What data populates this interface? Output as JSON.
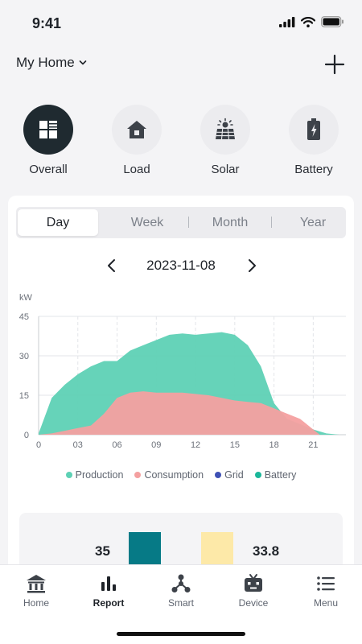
{
  "status": {
    "time": "9:41"
  },
  "header": {
    "home_name": "My Home"
  },
  "categories": [
    {
      "label": "Overall",
      "icon": "grid-icon",
      "active": true
    },
    {
      "label": "Load",
      "icon": "house-icon",
      "active": false
    },
    {
      "label": "Solar",
      "icon": "solar-panel-icon",
      "active": false
    },
    {
      "label": "Battery",
      "icon": "battery-icon",
      "active": false
    }
  ],
  "period_tabs": [
    {
      "label": "Day",
      "active": true
    },
    {
      "label": "Week",
      "active": false
    },
    {
      "label": "Month",
      "active": false
    },
    {
      "label": "Year",
      "active": false
    }
  ],
  "date": "2023-11-08",
  "chart_data": {
    "type": "area",
    "ylabel": "kW",
    "ylim": [
      0,
      45
    ],
    "yticks": [
      0,
      15,
      30,
      45
    ],
    "xlim": [
      0,
      23.5
    ],
    "xticks": [
      "0",
      "03",
      "06",
      "09",
      "12",
      "15",
      "18",
      "21"
    ],
    "grid": true,
    "legend_position": "bottom",
    "series": [
      {
        "name": "Production",
        "color": "#5ed1b5",
        "x": [
          0,
          1,
          2,
          3,
          4,
          5,
          6,
          7,
          8,
          9,
          10,
          11,
          12,
          13,
          14,
          15,
          16,
          17,
          18,
          19,
          20,
          21,
          22,
          23
        ],
        "values": [
          0.5,
          14,
          19,
          23,
          26,
          28,
          28,
          32,
          34,
          36,
          38,
          38.5,
          38,
          38.5,
          39,
          38,
          34,
          26,
          12,
          6,
          4,
          2,
          0.5,
          0
        ]
      },
      {
        "name": "Consumption",
        "color": "#f4a0a0",
        "x": [
          0,
          1,
          2,
          3,
          4,
          5,
          6,
          7,
          8,
          9,
          10,
          11,
          12,
          13,
          14,
          15,
          16,
          17,
          18,
          19,
          20,
          21,
          21.5
        ],
        "values": [
          0,
          0.5,
          1.5,
          2.5,
          3.5,
          8,
          14,
          16,
          16.5,
          16,
          16,
          16,
          15.5,
          15,
          14,
          13,
          12.5,
          12,
          10,
          8,
          6,
          2,
          0
        ]
      },
      {
        "name": "Grid",
        "color": "#3f51b5",
        "x": [],
        "values": []
      },
      {
        "name": "Battery",
        "color": "#1bb79a",
        "x": [],
        "values": []
      }
    ]
  },
  "summary": {
    "left_value": "35",
    "right_value": "33.8",
    "left_color": "#067a86",
    "right_color": "#fde9a8"
  },
  "tabbar": [
    {
      "label": "Home",
      "icon": "home-icon",
      "active": false
    },
    {
      "label": "Report",
      "icon": "bar-chart-icon",
      "active": true
    },
    {
      "label": "Smart",
      "icon": "nodes-icon",
      "active": false
    },
    {
      "label": "Device",
      "icon": "device-icon",
      "active": false
    },
    {
      "label": "Menu",
      "icon": "menu-icon",
      "active": false
    }
  ]
}
